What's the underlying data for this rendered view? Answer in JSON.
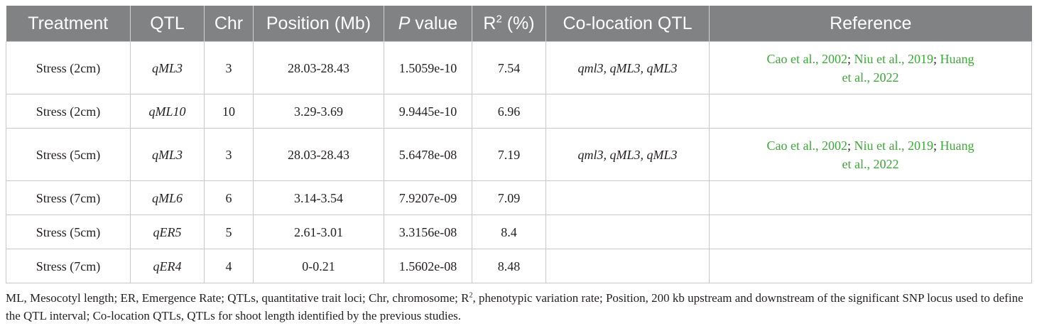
{
  "table": {
    "headers": {
      "treatment": "Treatment",
      "qtl": "QTL",
      "chr": "Chr",
      "position": "Position (Mb)",
      "pvalue_italic": "P",
      "pvalue_rest": " value",
      "r2_base": "R",
      "r2_sup": "2",
      "r2_rest": " (%)",
      "colocation": "Co-location QTL",
      "reference": "Reference"
    },
    "rows": [
      {
        "treatment": "Stress (2cm)",
        "qtl": "qML3",
        "chr": "3",
        "position": "28.03-28.43",
        "pvalue": "1.5059e-10",
        "r2": "7.54",
        "colocation": "qml3, qML3, qML3",
        "refs": [
          "Cao et al., 2002",
          "Niu et al., 2019",
          "Huang",
          "et al., 2022"
        ],
        "sep": ";"
      },
      {
        "treatment": "Stress (2cm)",
        "qtl": "qML10",
        "chr": "10",
        "position": "3.29-3.69",
        "pvalue": "9.9445e-10",
        "r2": "6.96",
        "colocation": "",
        "refs": []
      },
      {
        "treatment": "Stress (5cm)",
        "qtl": "qML3",
        "chr": "3",
        "position": "28.03-28.43",
        "pvalue": "5.6478e-08",
        "r2": "7.19",
        "colocation": "qml3, qML3, qML3",
        "refs": [
          "Cao et al., 2002",
          "Niu et al., 2019",
          "Huang",
          "et al., 2022"
        ],
        "sep": ";"
      },
      {
        "treatment": "Stress (7cm)",
        "qtl": "qML6",
        "chr": "6",
        "position": "3.14-3.54",
        "pvalue": "7.9207e-09",
        "r2": "7.09",
        "colocation": "",
        "refs": []
      },
      {
        "treatment": "Stress (5cm)",
        "qtl": "qER5",
        "chr": "5",
        "position": "2.61-3.01",
        "pvalue": "3.3156e-08",
        "r2": "8.4",
        "colocation": "",
        "refs": []
      },
      {
        "treatment": "Stress (7cm)",
        "qtl": "qER4",
        "chr": "4",
        "position": "0-0.21",
        "pvalue": "1.5602e-08",
        "r2": "8.48",
        "colocation": "",
        "refs": []
      }
    ]
  },
  "footnote": {
    "part1": "ML, Mesocotyl length; ER, Emergence Rate; QTLs, quantitative trait loci; Chr, chromosome; R",
    "sup": "2",
    "part2": ", phenotypic variation rate; Position, 200 kb upstream and downstream of the significant SNP locus used to define the QTL interval; Co-location QTLs, QTLs for shoot length identified by the previous studies."
  },
  "colors": {
    "header_bg": "#808284",
    "link": "#3aa935"
  }
}
